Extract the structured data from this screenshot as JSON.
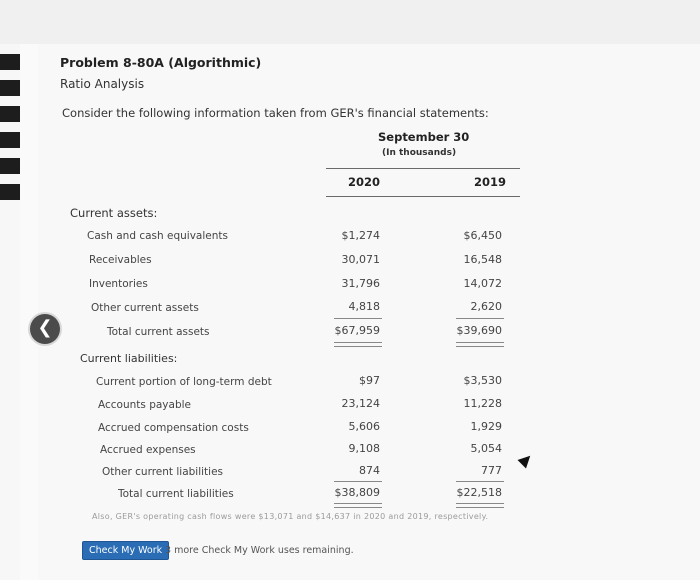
{
  "problem": {
    "title": "Problem 8-80A (Algorithmic)",
    "subtitle": "Ratio Analysis",
    "intro": "Consider the following information taken from GER's financial statements:"
  },
  "table": {
    "period": "September 30",
    "units": "(In thousands)",
    "years": [
      "2020",
      "2019"
    ],
    "current_assets": {
      "heading": "Current assets:",
      "rows": [
        {
          "label": "Cash and cash equivalents",
          "y2020": "$1,274",
          "y2019": "$6,450"
        },
        {
          "label": "Receivables",
          "y2020": "30,071",
          "y2019": "16,548"
        },
        {
          "label": "Inventories",
          "y2020": "31,796",
          "y2019": "14,072"
        },
        {
          "label": "Other current assets",
          "y2020": "4,818",
          "y2019": "2,620"
        }
      ],
      "total": {
        "label": "Total current assets",
        "y2020": "$67,959",
        "y2019": "$39,690"
      }
    },
    "current_liabilities": {
      "heading": "Current liabilities:",
      "rows": [
        {
          "label": "Current portion of long-term debt",
          "y2020": "$97",
          "y2019": "$3,530"
        },
        {
          "label": "Accounts payable",
          "y2020": "23,124",
          "y2019": "11,228"
        },
        {
          "label": "Accrued compensation costs",
          "y2020": "5,606",
          "y2019": "1,929"
        },
        {
          "label": "Accrued expenses",
          "y2020": "9,108",
          "y2019": "5,054"
        },
        {
          "label": "Other current liabilities",
          "y2020": "874",
          "y2019": "777"
        }
      ],
      "total": {
        "label": "Total current liabilities",
        "y2020": "$38,809",
        "y2019": "$22,518"
      }
    }
  },
  "footnote": "Also, GER's operating cash flows were $13,071 and $14,637 in 2020 and 2019, respectively.",
  "actions": {
    "check_label": "Check My Work",
    "remaining_text": "3 more Check My Work uses remaining."
  },
  "icons": {
    "back": "chevron-left-icon"
  }
}
